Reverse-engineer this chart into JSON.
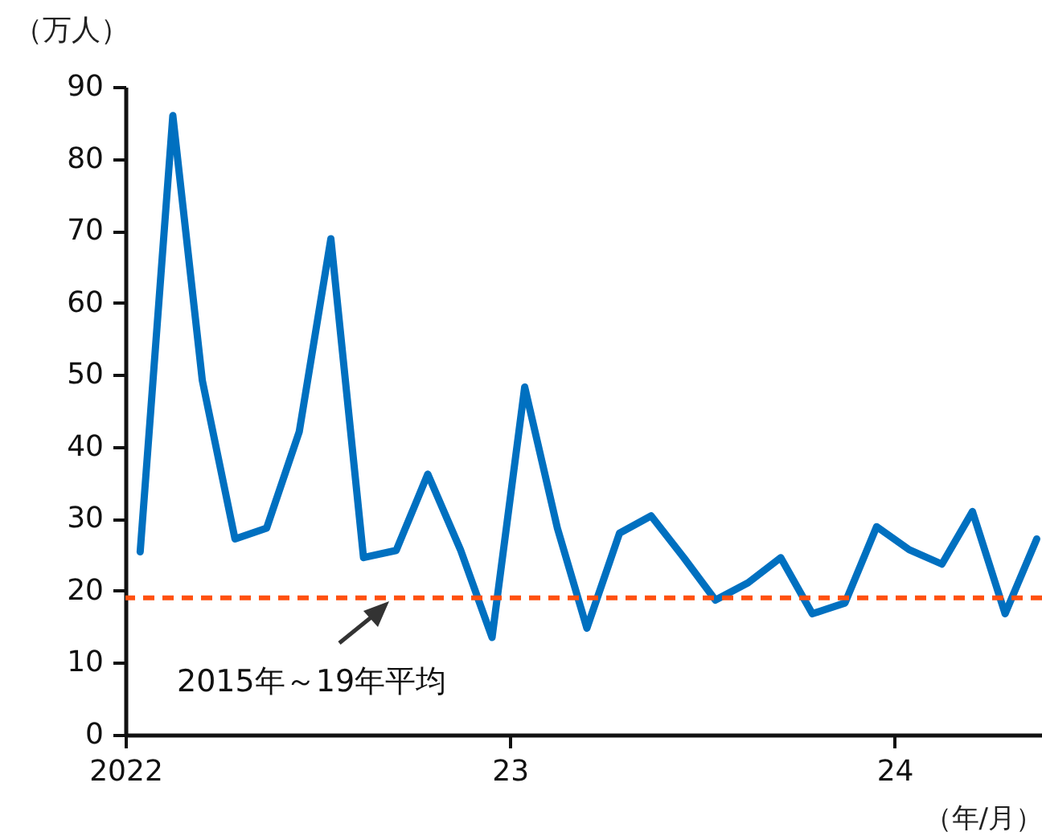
{
  "chart_data": {
    "type": "line",
    "ylabel": "（万人）",
    "xlabel": "（年/月）",
    "x": [
      "2022-01-15",
      "2022-02-15",
      "2022-03-15",
      "2022-04-15",
      "2022-05-15",
      "2022-06-15",
      "2022-07-15",
      "2022-08-15",
      "2022-09-15",
      "2022-10-15",
      "2022-11-15",
      "2022-12-15",
      "2023-01-15",
      "2023-02-15",
      "2023-03-15",
      "2023-04-15",
      "2023-05-15",
      "2023-06-15",
      "2023-07-15",
      "2023-08-15",
      "2023-09-15",
      "2023-10-15",
      "2023-11-15",
      "2023-12-15",
      "2024-01-15",
      "2024-02-15",
      "2024-03-15",
      "2024-04-15",
      "2024-05-15"
    ],
    "series": [
      {
        "color": "#0070c0",
        "values": [
          25.4,
          86.0,
          49.2,
          27.2,
          28.7,
          42.1,
          68.9,
          24.6,
          25.6,
          36.2,
          25.7,
          13.5,
          48.3,
          28.7,
          14.8,
          28.0,
          30.4,
          24.6,
          18.7,
          21.1,
          24.6,
          16.8,
          18.3,
          28.9,
          25.7,
          23.7,
          31.0,
          16.8,
          27.2
        ]
      }
    ],
    "xlim": [
      "2022-01-01",
      "2024-05-20"
    ],
    "xticks": [
      {
        "value": "2022-01-01",
        "label": "2022"
      },
      {
        "value": "2023-01-01",
        "label": "23"
      },
      {
        "value": "2024-01-01",
        "label": "24"
      }
    ],
    "ylim": [
      0,
      90
    ],
    "yticks": [
      0,
      10,
      20,
      30,
      40,
      50,
      60,
      70,
      80,
      90
    ],
    "ref_lines": [
      {
        "axis": "y",
        "value": 19.0,
        "label": "2015年～19年平均",
        "color": "#ff5010",
        "line_style": "dashed"
      }
    ],
    "grid": false,
    "marker": "none",
    "line_style": "solid"
  }
}
